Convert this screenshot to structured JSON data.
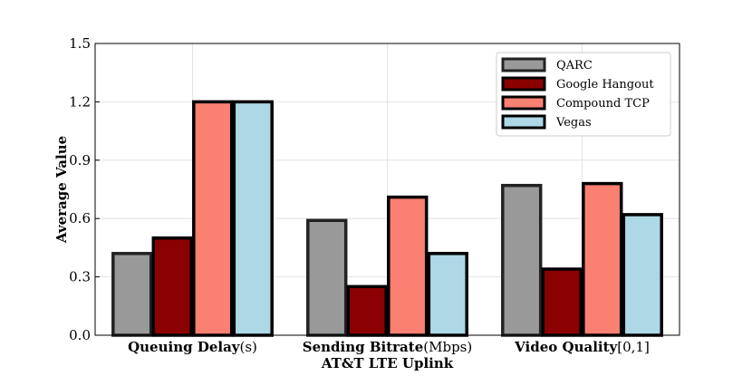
{
  "chart_data": {
    "type": "bar",
    "xlabel": "AT&T LTE Uplink",
    "ylabel": "Average Value",
    "ylim": [
      0,
      1.5
    ],
    "yticks": [
      "0.0",
      "0.3",
      "0.6",
      "0.9",
      "1.2",
      "1.5"
    ],
    "grid": true,
    "legend_position": "top-right",
    "categories": [
      {
        "name": "Queuing Delay",
        "unit": "(s)"
      },
      {
        "name": "Sending Bitrate",
        "unit": "(Mbps)"
      },
      {
        "name": "Video Quality",
        "unit": "[0,1]"
      }
    ],
    "series": [
      {
        "name": "QARC",
        "color": "#999999",
        "edge": "#222222",
        "values": [
          0.42,
          0.59,
          0.77
        ]
      },
      {
        "name": "Google Hangout",
        "color": "#8b0000",
        "edge": "#000000",
        "values": [
          0.5,
          0.25,
          0.34
        ]
      },
      {
        "name": "Compound TCP",
        "color": "#fa8072",
        "edge": "#000000",
        "values": [
          1.2,
          0.71,
          0.78
        ]
      },
      {
        "name": "Vegas",
        "color": "#add8e6",
        "edge": "#000000",
        "values": [
          1.2,
          0.42,
          0.62
        ]
      }
    ]
  }
}
